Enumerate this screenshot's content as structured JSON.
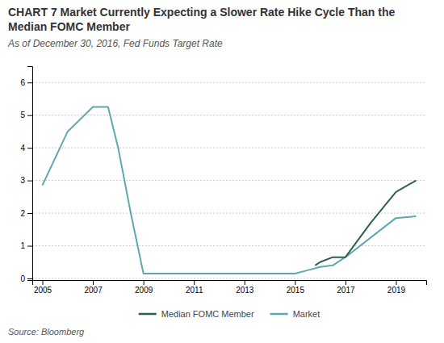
{
  "chart_data": {
    "type": "line",
    "title": "CHART 7 Market Currently Expecting a Slower Rate Hike Cycle Than the Median FOMC Member",
    "subtitle": "As of December 30, 2016, Fed Funds Target Rate",
    "annotations": [
      "Source: Bloomberg"
    ],
    "series": [
      {
        "name": "Market",
        "color": "#5fa8b0",
        "x": [
          2005,
          2006,
          2007,
          2007.6,
          2008.0,
          2008.5,
          2009.0,
          2010,
          2011,
          2012,
          2013,
          2014,
          2015,
          2015.5,
          2016.0,
          2016.5,
          2017.0,
          2018.0,
          2019.0,
          2019.8
        ],
        "values": [
          2.85,
          4.5,
          5.25,
          5.25,
          4.0,
          2.0,
          0.15,
          0.15,
          0.15,
          0.15,
          0.15,
          0.15,
          0.15,
          0.25,
          0.35,
          0.4,
          0.65,
          1.25,
          1.85,
          1.9
        ]
      },
      {
        "name": "Median FOMC Member",
        "color": "#2f5f50",
        "x": [
          2015.8,
          2016.0,
          2016.5,
          2017.0,
          2018.0,
          2019.0,
          2019.8
        ],
        "values": [
          0.4,
          0.5,
          0.65,
          0.65,
          1.7,
          2.65,
          3.0
        ]
      }
    ],
    "xlim": [
      2004.6,
      2020.2
    ],
    "xticks": [
      2005,
      2007,
      2009,
      2011,
      2013,
      2015,
      2017,
      2019
    ],
    "ylim": [
      -0.05,
      6.5
    ],
    "yticks": [
      0,
      1,
      2,
      3,
      4,
      5,
      6
    ],
    "grid": true,
    "legend": "bottom"
  }
}
